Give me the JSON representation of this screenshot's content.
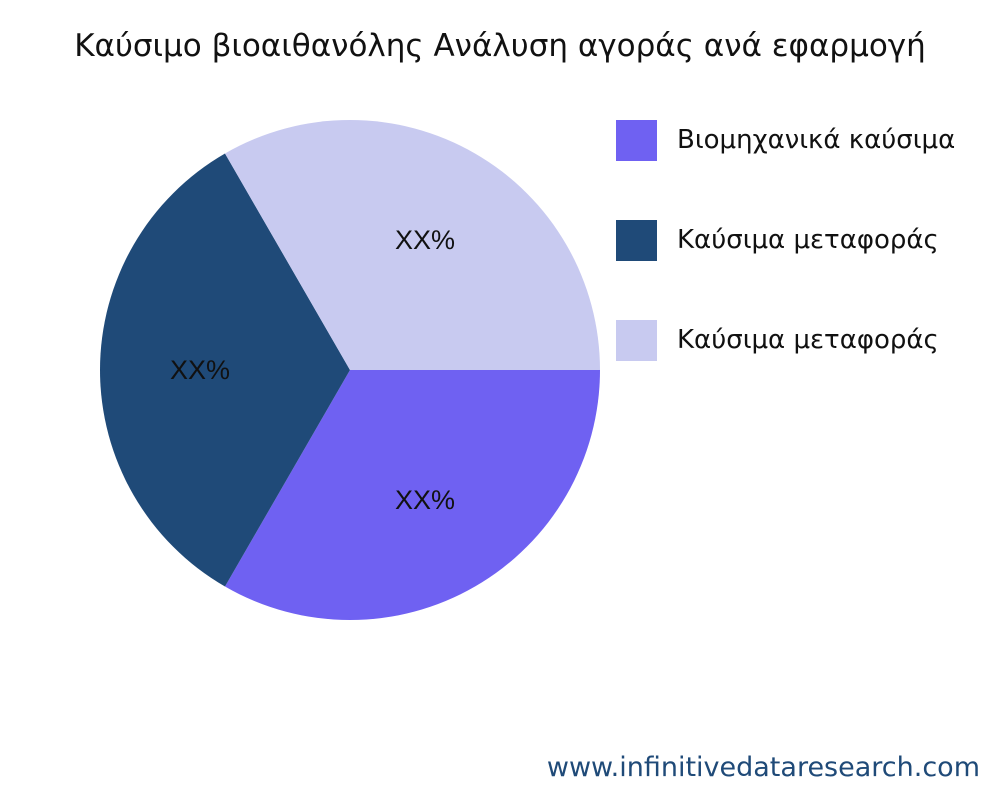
{
  "chart_data": {
    "type": "pie",
    "title": "Καύσιμο βιοαιθανόλης Ανάλυση αγοράς ανά εφαρμογή",
    "slices": [
      {
        "name": "Βιομηχανικά καύσιμα",
        "value": 33.33,
        "label": "XX%",
        "color": "#6f61f2"
      },
      {
        "name": "Καύσιμα μεταφοράς",
        "value": 33.33,
        "label": "XX%",
        "color": "#1f4a78"
      },
      {
        "name": "Καύσιμα μεταφοράς",
        "value": 33.33,
        "label": "XX%",
        "color": "#c8caf0"
      }
    ],
    "legend_position": "right"
  },
  "watermark": "www.infinitivedataresearch.com"
}
